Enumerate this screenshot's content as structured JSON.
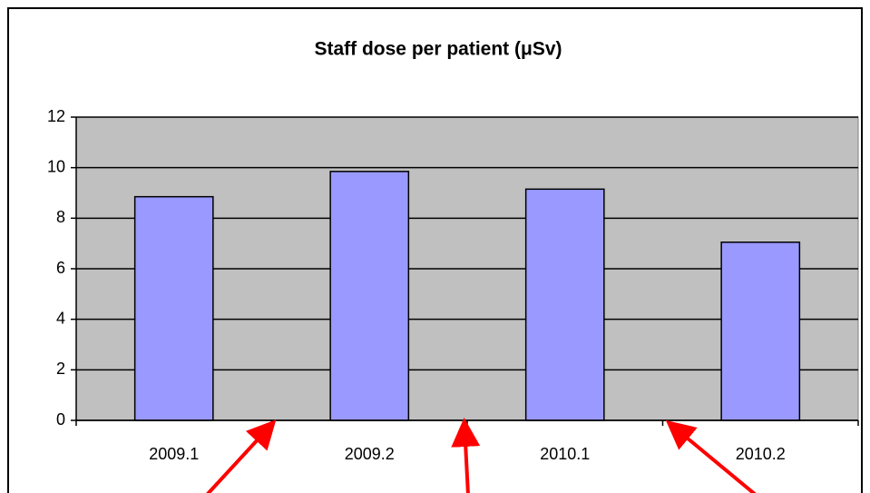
{
  "chart_data": {
    "type": "bar",
    "title": "Staff dose per patient (μSv)",
    "categories": [
      "2009.1",
      "2009.2",
      "2010.1",
      "2010.2"
    ],
    "values": [
      8.85,
      9.85,
      9.15,
      7.05
    ],
    "color": "#9999ff",
    "ylim": [
      0,
      12
    ],
    "yticks": [
      0,
      2,
      4,
      6,
      8,
      10,
      12
    ],
    "grid": true
  }
}
